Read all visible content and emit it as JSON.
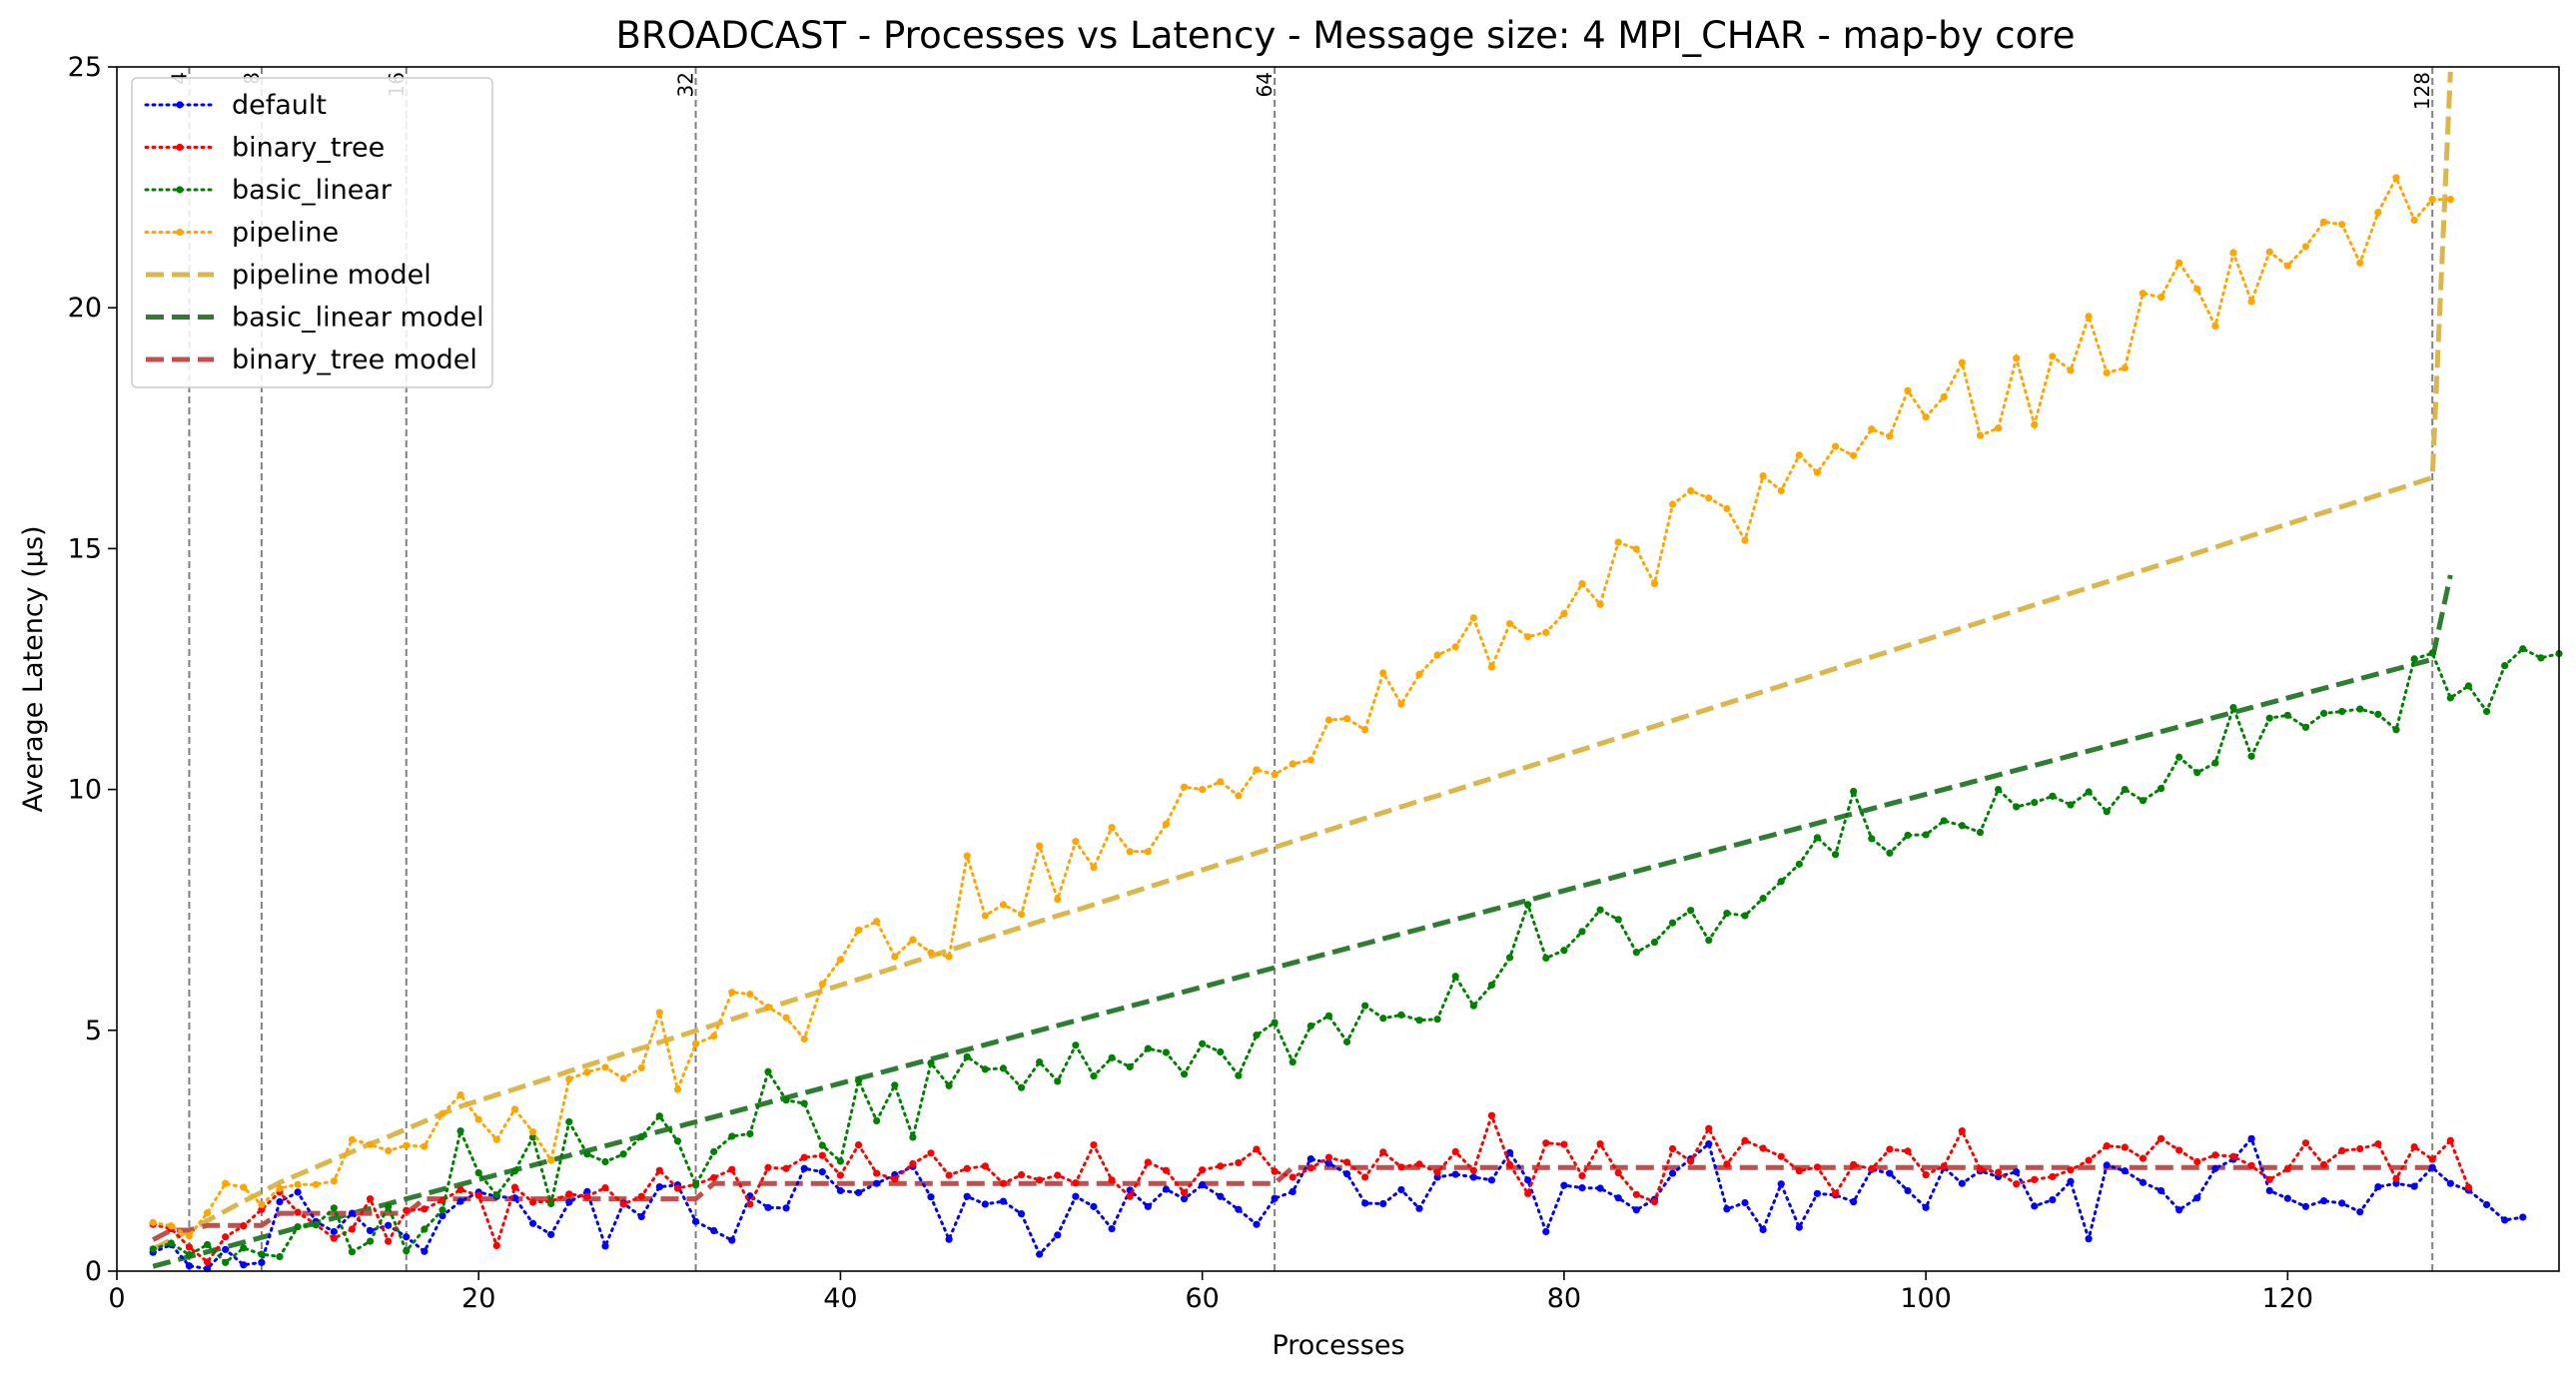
{
  "chart_data": {
    "type": "line",
    "title": "BROADCAST - Processes vs Latency - Message size: 4 MPI_CHAR - map-by core",
    "xlabel": "Processes",
    "ylabel": "Average Latency (μs)",
    "xlim": [
      0,
      135
    ],
    "ylim": [
      0,
      25
    ],
    "xticks": [
      0,
      20,
      40,
      60,
      80,
      100,
      120
    ],
    "yticks": [
      0,
      5,
      10,
      15,
      20,
      25
    ],
    "grid": false,
    "legend_position": "top-left",
    "reference_lines": [
      {
        "x": 4,
        "label": "4"
      },
      {
        "x": 8,
        "label": "8"
      },
      {
        "x": 16,
        "label": "16"
      },
      {
        "x": 32,
        "label": "32"
      },
      {
        "x": 64,
        "label": "64"
      },
      {
        "x": 128,
        "label": "128"
      }
    ],
    "x_start": 2,
    "series": [
      {
        "name": "default",
        "style": "dotted-markers",
        "color": "#0000ff",
        "values": [
          0.39,
          0.55,
          0.11,
          0.05,
          0.45,
          0.13,
          0.18,
          1.44,
          1.64,
          1.03,
          0.82,
          1.2,
          0.84,
          0.95,
          0.71,
          0.41,
          1.15,
          1.45,
          1.64,
          1.55,
          1.52,
          0.99,
          0.76,
          1.43,
          1.65,
          0.52,
          1.41,
          1.13,
          1.75,
          1.79,
          1.03,
          0.84,
          0.64,
          1.56,
          1.32,
          1.31,
          2.13,
          2.06,
          1.67,
          1.63,
          1.82,
          2.0,
          2.17,
          1.54,
          0.66,
          1.55,
          1.39,
          1.45,
          1.19,
          0.35,
          0.75,
          1.55,
          1.34,
          0.88,
          1.68,
          1.34,
          1.7,
          1.5,
          1.79,
          1.55,
          1.28,
          0.97,
          1.51,
          1.65,
          2.33,
          2.24,
          2.02,
          1.41,
          1.4,
          1.69,
          1.3,
          1.95,
          2.01,
          1.95,
          1.89,
          2.46,
          1.89,
          0.82,
          1.78,
          1.73,
          1.72,
          1.52,
          1.27,
          1.49,
          2.03,
          2.33,
          2.64,
          1.29,
          1.42,
          0.86,
          1.81,
          0.91,
          1.61,
          1.58,
          1.44,
          2.11,
          2.03,
          1.67,
          1.32,
          2.15,
          1.82,
          2.08,
          1.96,
          2.06,
          1.35,
          1.48,
          1.86,
          0.67,
          2.2,
          2.08,
          1.84,
          1.67,
          1.27,
          1.52,
          2.13,
          2.32,
          2.75,
          1.67,
          1.51,
          1.34,
          1.46,
          1.41,
          1.23,
          1.75,
          1.82,
          1.76,
          2.15,
          1.82,
          1.68,
          1.38,
          1.06,
          1.12
        ]
      },
      {
        "name": "binary_tree",
        "style": "dotted-markers",
        "color": "#ff0000",
        "values": [
          0.97,
          0.88,
          0.5,
          0.19,
          0.71,
          0.94,
          1.28,
          1.64,
          1.22,
          0.97,
          0.68,
          0.87,
          1.5,
          0.62,
          1.26,
          1.29,
          1.47,
          1.69,
          1.57,
          0.53,
          1.74,
          1.43,
          1.45,
          1.6,
          1.55,
          1.73,
          1.39,
          1.55,
          2.09,
          1.72,
          1.8,
          1.94,
          2.11,
          1.39,
          2.15,
          2.13,
          2.36,
          2.4,
          1.99,
          2.62,
          2.03,
          1.91,
          2.23,
          2.45,
          1.99,
          2.13,
          2.18,
          1.82,
          2.0,
          1.89,
          1.99,
          1.83,
          2.62,
          1.89,
          1.55,
          2.26,
          2.09,
          1.63,
          2.1,
          2.18,
          2.25,
          2.53,
          2.07,
          1.95,
          2.14,
          2.36,
          2.26,
          1.95,
          2.47,
          2.16,
          2.22,
          2.05,
          2.48,
          2.09,
          3.23,
          2.21,
          1.61,
          2.66,
          2.63,
          1.98,
          2.64,
          2.04,
          1.59,
          1.44,
          2.54,
          2.28,
          2.96,
          2.22,
          2.71,
          2.55,
          2.38,
          2.08,
          2.16,
          1.61,
          2.21,
          2.12,
          2.53,
          2.49,
          2.0,
          2.18,
          2.91,
          2.12,
          2.05,
          1.81,
          1.9,
          1.96,
          2.1,
          2.3,
          2.6,
          2.57,
          2.34,
          2.75,
          2.51,
          2.27,
          2.41,
          2.38,
          2.19,
          1.9,
          2.12,
          2.66,
          2.21,
          2.5,
          2.54,
          2.64,
          1.92,
          2.58,
          2.32,
          2.71,
          1.74
        ]
      },
      {
        "name": "basic_linear",
        "style": "dotted-markers",
        "color": "#008000",
        "values": [
          0.46,
          0.58,
          0.34,
          0.55,
          0.18,
          0.48,
          0.35,
          0.3,
          0.92,
          0.96,
          1.31,
          0.4,
          0.62,
          1.34,
          0.42,
          0.87,
          1.27,
          2.91,
          2.04,
          1.58,
          2.08,
          2.78,
          1.4,
          3.1,
          2.43,
          2.27,
          2.43,
          2.79,
          3.22,
          2.7,
          1.79,
          2.48,
          2.8,
          2.85,
          4.14,
          3.55,
          3.48,
          2.61,
          2.28,
          3.96,
          3.12,
          3.86,
          2.78,
          4.32,
          3.85,
          4.45,
          4.19,
          4.21,
          3.81,
          4.34,
          3.94,
          4.69,
          4.05,
          4.43,
          4.24,
          4.62,
          4.54,
          4.09,
          4.72,
          4.55,
          4.06,
          4.9,
          5.16,
          4.34,
          5.09,
          5.3,
          4.76,
          5.51,
          5.25,
          5.32,
          5.21,
          5.23,
          6.12,
          5.51,
          5.94,
          6.51,
          7.61,
          6.5,
          6.66,
          7.05,
          7.5,
          7.3,
          6.62,
          6.83,
          7.23,
          7.49,
          6.87,
          7.43,
          7.38,
          7.74,
          8.09,
          8.45,
          9.0,
          8.65,
          9.96,
          8.98,
          8.68,
          9.05,
          9.06,
          9.35,
          9.25,
          9.11,
          10.0,
          9.64,
          9.73,
          9.86,
          9.68,
          9.95,
          9.54,
          10.0,
          9.77,
          10.02,
          10.67,
          10.35,
          10.55,
          11.7,
          10.69,
          11.48,
          11.54,
          11.29,
          11.58,
          11.62,
          11.67,
          11.56,
          11.24,
          12.71,
          12.83,
          11.9,
          12.15,
          11.62,
          12.57,
          12.92,
          12.73,
          12.82
        ]
      },
      {
        "name": "pipeline",
        "style": "dotted-markers",
        "color": "#ffa500",
        "values": [
          1.01,
          0.94,
          0.73,
          1.21,
          1.82,
          1.74,
          1.38,
          1.72,
          1.8,
          1.8,
          1.87,
          2.73,
          2.63,
          2.5,
          2.61,
          2.59,
          3.27,
          3.66,
          3.15,
          2.73,
          3.36,
          2.89,
          2.3,
          3.99,
          4.13,
          4.23,
          4.0,
          4.22,
          5.37,
          3.77,
          4.72,
          4.88,
          5.79,
          5.75,
          5.48,
          5.26,
          4.82,
          5.96,
          6.47,
          7.08,
          7.26,
          6.53,
          6.88,
          6.61,
          6.53,
          8.62,
          7.38,
          7.61,
          7.41,
          8.83,
          7.72,
          8.92,
          8.38,
          9.21,
          8.71,
          8.71,
          9.28,
          10.05,
          10.0,
          10.16,
          9.87,
          10.41,
          10.31,
          10.53,
          10.61,
          11.44,
          11.47,
          11.24,
          12.42,
          11.77,
          12.39,
          12.79,
          12.96,
          13.56,
          12.54,
          13.44,
          13.17,
          13.26,
          13.65,
          14.27,
          13.84,
          15.13,
          14.99,
          14.27,
          15.92,
          16.2,
          16.05,
          15.83,
          15.17,
          16.51,
          16.2,
          16.94,
          16.58,
          17.12,
          16.93,
          17.48,
          17.33,
          18.28,
          17.73,
          18.15,
          18.86,
          17.35,
          17.5,
          18.95,
          17.57,
          18.99,
          18.7,
          19.82,
          18.65,
          18.75,
          20.3,
          20.22,
          20.93,
          20.39,
          19.62,
          21.14,
          20.13,
          21.16,
          20.87,
          21.27,
          21.78,
          21.73,
          20.93,
          21.98,
          22.7,
          21.82,
          22.25,
          22.25
        ]
      },
      {
        "name": "pipeline model",
        "style": "dashed",
        "color": "#dab64c",
        "values": [
          0.46,
          0.65,
          0.85,
          1.05,
          1.25,
          1.45,
          1.64,
          1.84,
          2.0,
          2.16,
          2.32,
          2.48,
          2.64,
          2.79,
          2.95,
          3.11,
          3.27,
          3.42,
          3.54,
          3.66,
          3.78,
          3.9,
          4.02,
          4.15,
          4.27,
          4.39,
          4.51,
          4.63,
          4.75,
          4.87,
          4.99,
          5.11,
          5.23,
          5.35,
          5.46,
          5.58,
          5.7,
          5.82,
          5.94,
          6.06,
          6.18,
          6.3,
          6.42,
          6.54,
          6.66,
          6.78,
          6.9,
          7.02,
          7.14,
          7.26,
          7.38,
          7.49,
          7.61,
          7.73,
          7.85,
          7.97,
          8.09,
          8.21,
          8.33,
          8.45,
          8.56,
          8.68,
          8.8,
          8.92,
          9.04,
          9.16,
          9.28,
          9.4,
          9.52,
          9.64,
          9.76,
          9.87,
          9.99,
          10.11,
          10.23,
          10.35,
          10.47,
          10.59,
          10.71,
          10.83,
          10.95,
          11.07,
          11.19,
          11.31,
          11.43,
          11.55,
          11.67,
          11.79,
          11.91,
          12.03,
          12.15,
          12.27,
          12.39,
          12.51,
          12.63,
          12.75,
          12.87,
          12.99,
          13.11,
          13.23,
          13.35,
          13.47,
          13.59,
          13.71,
          13.83,
          13.95,
          14.07,
          14.19,
          14.31,
          14.43,
          14.55,
          14.67,
          14.79,
          14.91,
          15.03,
          15.15,
          15.27,
          15.39,
          15.51,
          15.63,
          15.75,
          15.87,
          15.99,
          16.11,
          16.23,
          16.35,
          16.47,
          24.9
        ]
      },
      {
        "name": "basic_linear model",
        "style": "dashed",
        "color": "#2e7d32",
        "values": [
          0.1,
          0.2,
          0.3,
          0.4,
          0.5,
          0.6,
          0.7,
          0.8,
          0.9,
          1.0,
          1.1,
          1.2,
          1.3,
          1.4,
          1.5,
          1.6,
          1.7,
          1.8,
          1.9,
          2.0,
          2.1,
          2.2,
          2.3,
          2.4,
          2.5,
          2.6,
          2.7,
          2.8,
          2.9,
          3.0,
          3.1,
          3.2,
          3.3,
          3.4,
          3.5,
          3.6,
          3.7,
          3.8,
          3.9,
          4.0,
          4.1,
          4.2,
          4.3,
          4.4,
          4.5,
          4.6,
          4.7,
          4.8,
          4.9,
          5.0,
          5.1,
          5.2,
          5.3,
          5.4,
          5.5,
          5.6,
          5.7,
          5.8,
          5.9,
          6.0,
          6.1,
          6.2,
          6.3,
          6.4,
          6.5,
          6.6,
          6.7,
          6.8,
          6.9,
          7.0,
          7.1,
          7.2,
          7.3,
          7.4,
          7.5,
          7.6,
          7.7,
          7.8,
          7.9,
          8.0,
          8.1,
          8.2,
          8.3,
          8.4,
          8.5,
          8.6,
          8.7,
          8.8,
          8.9,
          9.0,
          9.1,
          9.2,
          9.3,
          9.4,
          9.5,
          9.6,
          9.7,
          9.8,
          9.9,
          10.0,
          10.1,
          10.2,
          10.3,
          10.4,
          10.5,
          10.6,
          10.7,
          10.8,
          10.9,
          11.0,
          11.1,
          11.2,
          11.3,
          11.4,
          11.5,
          11.6,
          11.7,
          11.8,
          11.9,
          12.0,
          12.1,
          12.2,
          12.3,
          12.4,
          12.5,
          12.6,
          12.7,
          14.45
        ]
      },
      {
        "name": "binary_tree model",
        "style": "dashed",
        "color": "#c0504d",
        "values": [
          0.65,
          0.85,
          0.85,
          0.95,
          0.95,
          0.95,
          0.95,
          1.2,
          1.2,
          1.2,
          1.2,
          1.2,
          1.2,
          1.2,
          1.2,
          1.5,
          1.5,
          1.5,
          1.5,
          1.5,
          1.5,
          1.5,
          1.5,
          1.5,
          1.5,
          1.5,
          1.5,
          1.5,
          1.5,
          1.5,
          1.5,
          1.82,
          1.82,
          1.82,
          1.82,
          1.82,
          1.82,
          1.82,
          1.82,
          1.82,
          1.82,
          1.82,
          1.82,
          1.82,
          1.82,
          1.82,
          1.82,
          1.82,
          1.82,
          1.82,
          1.82,
          1.82,
          1.82,
          1.82,
          1.82,
          1.82,
          1.82,
          1.82,
          1.82,
          1.82,
          1.82,
          1.82,
          1.82,
          2.15,
          2.15,
          2.15,
          2.15,
          2.15,
          2.15,
          2.15,
          2.15,
          2.15,
          2.15,
          2.15,
          2.15,
          2.15,
          2.15,
          2.15,
          2.15,
          2.15,
          2.15,
          2.15,
          2.15,
          2.15,
          2.15,
          2.15,
          2.15,
          2.15,
          2.15,
          2.15,
          2.15,
          2.15,
          2.15,
          2.15,
          2.15,
          2.15,
          2.15,
          2.15,
          2.15,
          2.15,
          2.15,
          2.15,
          2.15,
          2.15,
          2.15,
          2.15,
          2.15,
          2.15,
          2.15,
          2.15,
          2.15,
          2.15,
          2.15,
          2.15,
          2.15,
          2.15,
          2.15,
          2.15,
          2.15,
          2.15,
          2.15,
          2.15,
          2.15,
          2.15,
          2.15,
          2.15,
          2.15
        ]
      }
    ]
  }
}
